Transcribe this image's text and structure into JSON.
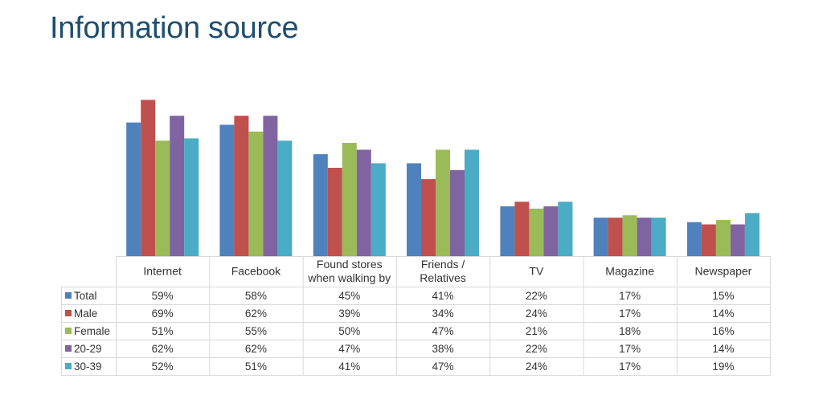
{
  "title": "Information source",
  "chart_data": {
    "type": "bar",
    "categories": [
      "Internet",
      "Facebook",
      "Found stores when walking by",
      "Friends / Relatives",
      "TV",
      "Magazine",
      "Newspaper"
    ],
    "category_lines": [
      [
        "Internet"
      ],
      [
        "Facebook"
      ],
      [
        "Found stores",
        "when walking by"
      ],
      [
        "Friends /",
        "Relatives"
      ],
      [
        "TV"
      ],
      [
        "Magazine"
      ],
      [
        "Newspaper"
      ]
    ],
    "series": [
      {
        "name": "Total",
        "color": "#4f81bd",
        "values": [
          59,
          58,
          45,
          41,
          22,
          17,
          15
        ],
        "labels": [
          "59%",
          "58%",
          "45%",
          "41%",
          "22%",
          "17%",
          "15%"
        ]
      },
      {
        "name": "Male",
        "color": "#c0504d",
        "values": [
          69,
          62,
          39,
          34,
          24,
          17,
          14
        ],
        "labels": [
          "69%",
          "62%",
          "39%",
          "34%",
          "24%",
          "17%",
          "14%"
        ]
      },
      {
        "name": "Female",
        "color": "#9bbb59",
        "values": [
          51,
          55,
          50,
          47,
          21,
          18,
          16
        ],
        "labels": [
          "51%",
          "55%",
          "50%",
          "47%",
          "21%",
          "18%",
          "16%"
        ]
      },
      {
        "name": "20-29",
        "color": "#8064a2",
        "values": [
          62,
          62,
          47,
          38,
          22,
          17,
          14
        ],
        "labels": [
          "62%",
          "62%",
          "47%",
          "38%",
          "22%",
          "17%",
          "14%"
        ]
      },
      {
        "name": "30-39",
        "color": "#4bacc6",
        "values": [
          52,
          51,
          41,
          47,
          24,
          17,
          19
        ],
        "labels": [
          "52%",
          "51%",
          "41%",
          "47%",
          "24%",
          "17%",
          "19%"
        ]
      }
    ],
    "ylim": [
      0,
      70
    ],
    "grid": false,
    "legend": "data-table"
  }
}
